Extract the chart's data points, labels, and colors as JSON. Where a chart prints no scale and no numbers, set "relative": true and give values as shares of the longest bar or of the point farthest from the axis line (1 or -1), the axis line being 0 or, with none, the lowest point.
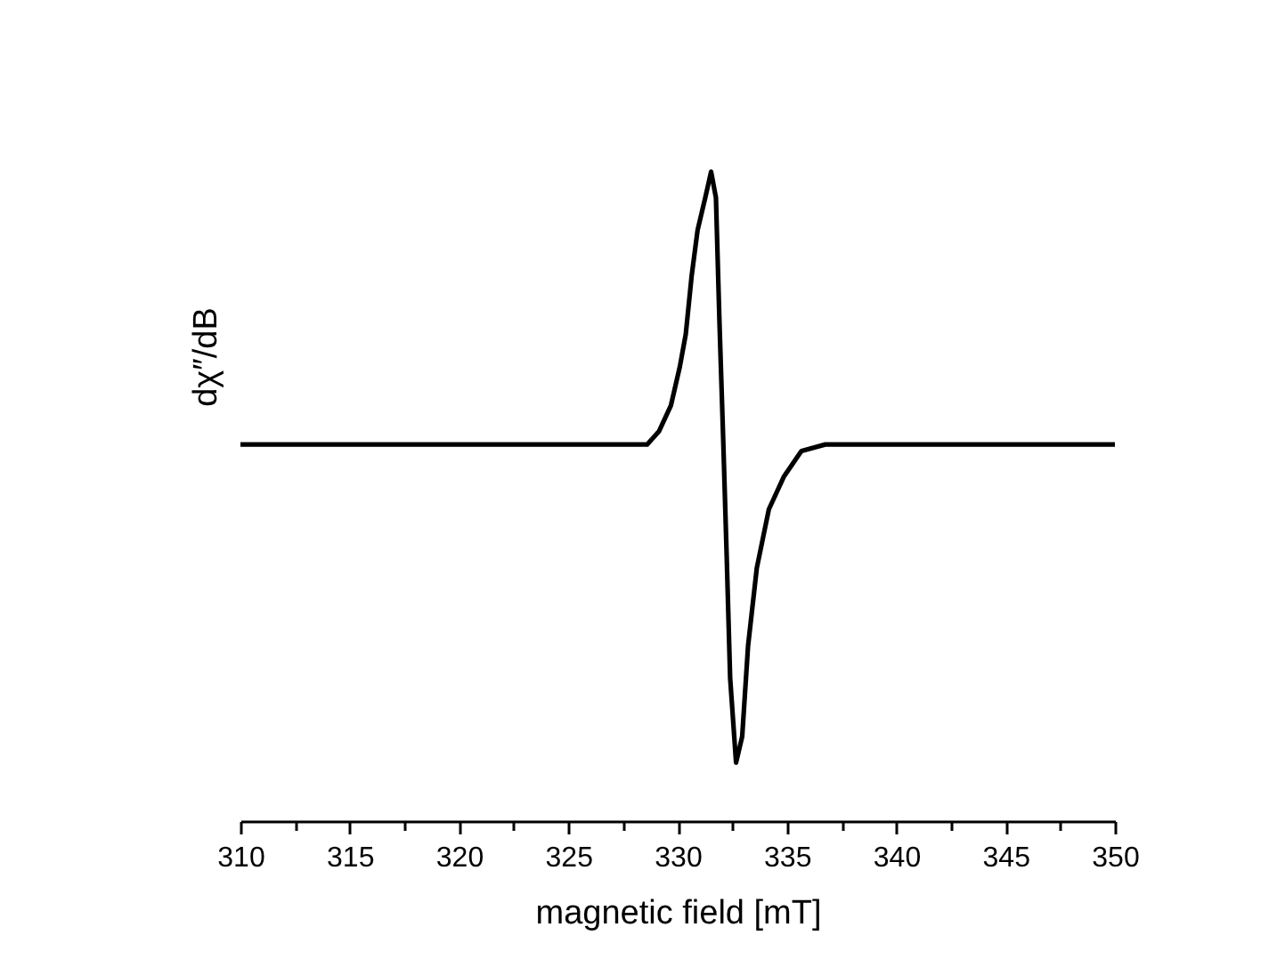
{
  "chart_data": {
    "type": "line",
    "relative": true,
    "xlabel": "magnetic field [mT]",
    "ylabel": "dχ″/dB",
    "xlim": [
      310,
      350
    ],
    "xticks": [
      310,
      {
        "value": 312.5,
        "label": null
      },
      315,
      {
        "value": 317.5,
        "label": null
      },
      320,
      {
        "value": 322.5,
        "label": null
      },
      325,
      {
        "value": 327.5,
        "label": null
      },
      330,
      {
        "value": 332.5,
        "label": null
      },
      335,
      {
        "value": 337.5,
        "label": null
      },
      340,
      {
        "value": 342.5,
        "label": null
      },
      345,
      {
        "value": 347.5,
        "label": null
      },
      350
    ],
    "tick_labels": "x",
    "grid": false,
    "marker": "none",
    "line_style": "solid",
    "series": [
      {
        "color": "#000000",
        "x": [
          310,
          320,
          328.6,
          329.14,
          329.69,
          330.1,
          330.37,
          330.64,
          330.91,
          331.26,
          331.53,
          331.75,
          331.91,
          332.08,
          332.24,
          332.4,
          332.67,
          332.95,
          333.22,
          333.62,
          334.17,
          334.85,
          335.66,
          336.75,
          338.1,
          344,
          350
        ],
        "values": [
          0.58,
          0.58,
          0.58,
          0.6,
          0.64,
          0.7,
          0.75,
          0.84,
          0.91,
          0.96,
          1.0,
          0.96,
          0.77,
          0.59,
          0.41,
          0.22,
          0.09,
          0.13,
          0.27,
          0.39,
          0.48,
          0.53,
          0.57,
          0.58,
          0.58,
          0.58,
          0.58
        ]
      }
    ]
  }
}
